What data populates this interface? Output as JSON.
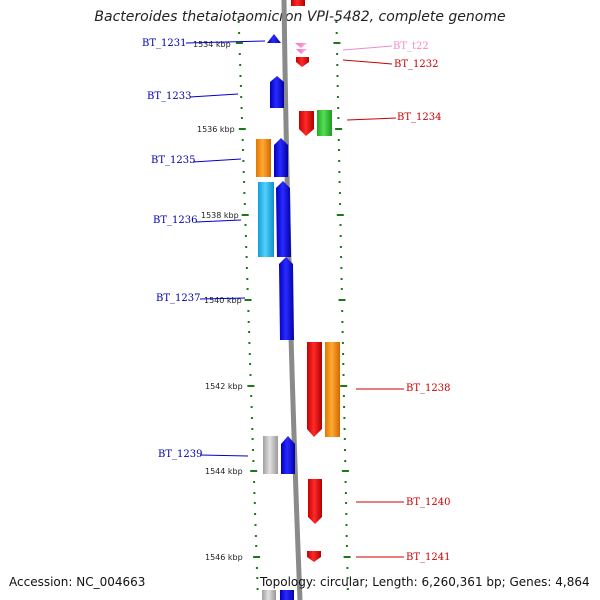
{
  "title": "Bacteroides thetaiotaomicron VPI-5482, complete genome",
  "footer": {
    "accession": "Accession: NC_004663",
    "summary": "Topology: circular; Length: 6,260,361 bp; Genes: 4,864"
  },
  "colors": {
    "blue": "#0000ee",
    "red": "#ee0000",
    "green": "#33cc33",
    "orange": "#ff8c00",
    "cyan": "#22b8e8",
    "gray": "#bdbdbd",
    "pink": "#f08ac8",
    "tick": "#1a7a1a",
    "backbone": "#8a8a8a"
  },
  "ruler": [
    "1534 kbp",
    "1536 kbp",
    "1538 kbp",
    "1540 kbp",
    "1542 kbp",
    "1544 kbp",
    "1546 kbp"
  ],
  "genes": [
    {
      "name": "BT_1231",
      "color": "blue"
    },
    {
      "name": "BT_t22",
      "color": "pink"
    },
    {
      "name": "BT_1232",
      "color": "red"
    },
    {
      "name": "BT_1233",
      "color": "blue"
    },
    {
      "name": "BT_1234",
      "color": "red"
    },
    {
      "name": "BT_1235",
      "color": "blue"
    },
    {
      "name": "BT_1236",
      "color": "blue"
    },
    {
      "name": "BT_1237",
      "color": "blue"
    },
    {
      "name": "BT_1238",
      "color": "red"
    },
    {
      "name": "BT_1239",
      "color": "blue"
    },
    {
      "name": "BT_1240",
      "color": "red"
    },
    {
      "name": "BT_1241",
      "color": "red"
    }
  ]
}
